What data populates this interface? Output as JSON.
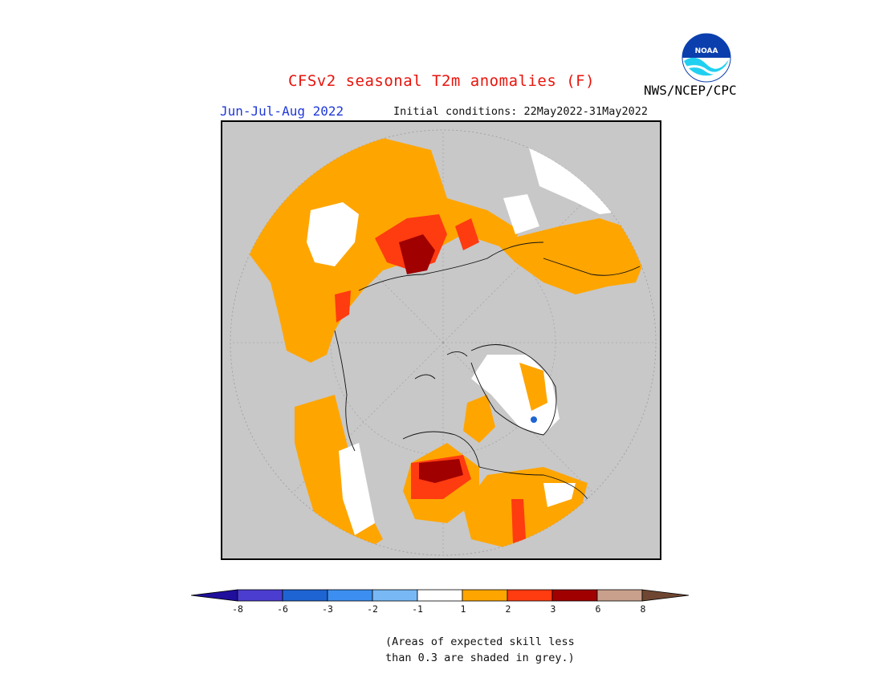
{
  "header": {
    "title": "CFSv2 seasonal T2m anomalies (F)",
    "season": "Jun-Jul-Aug 2022",
    "initial_conditions": "Initial conditions: 22May2022-31May2022",
    "organization": "NWS/NCEP/CPC",
    "logo_text": "NOAA",
    "logo_icon": "noaa-logo-icon"
  },
  "map": {
    "projection": "north-polar-stereographic",
    "background_grey_meaning": "low-skill",
    "colors": {
      "grey": "#c8c8c8",
      "white": "#ffffff",
      "orange": "#ffa500",
      "red_orange": "#ff3b10",
      "dark_red": "#a00000"
    }
  },
  "legend": {
    "ticks": [
      "-8",
      "-6",
      "-3",
      "-2",
      "-1",
      "1",
      "2",
      "3",
      "6",
      "8"
    ],
    "colors": [
      "#1f0f9c",
      "#4b3dd0",
      "#1e64d2",
      "#3c8ff0",
      "#78b9f5",
      "#ffffff",
      "#ffa500",
      "#ff3b10",
      "#a00000",
      "#c8a08c",
      "#6e4632"
    ],
    "note_line1": "(Areas of expected skill less",
    "note_line2": "than 0.3 are shaded in grey.)"
  }
}
